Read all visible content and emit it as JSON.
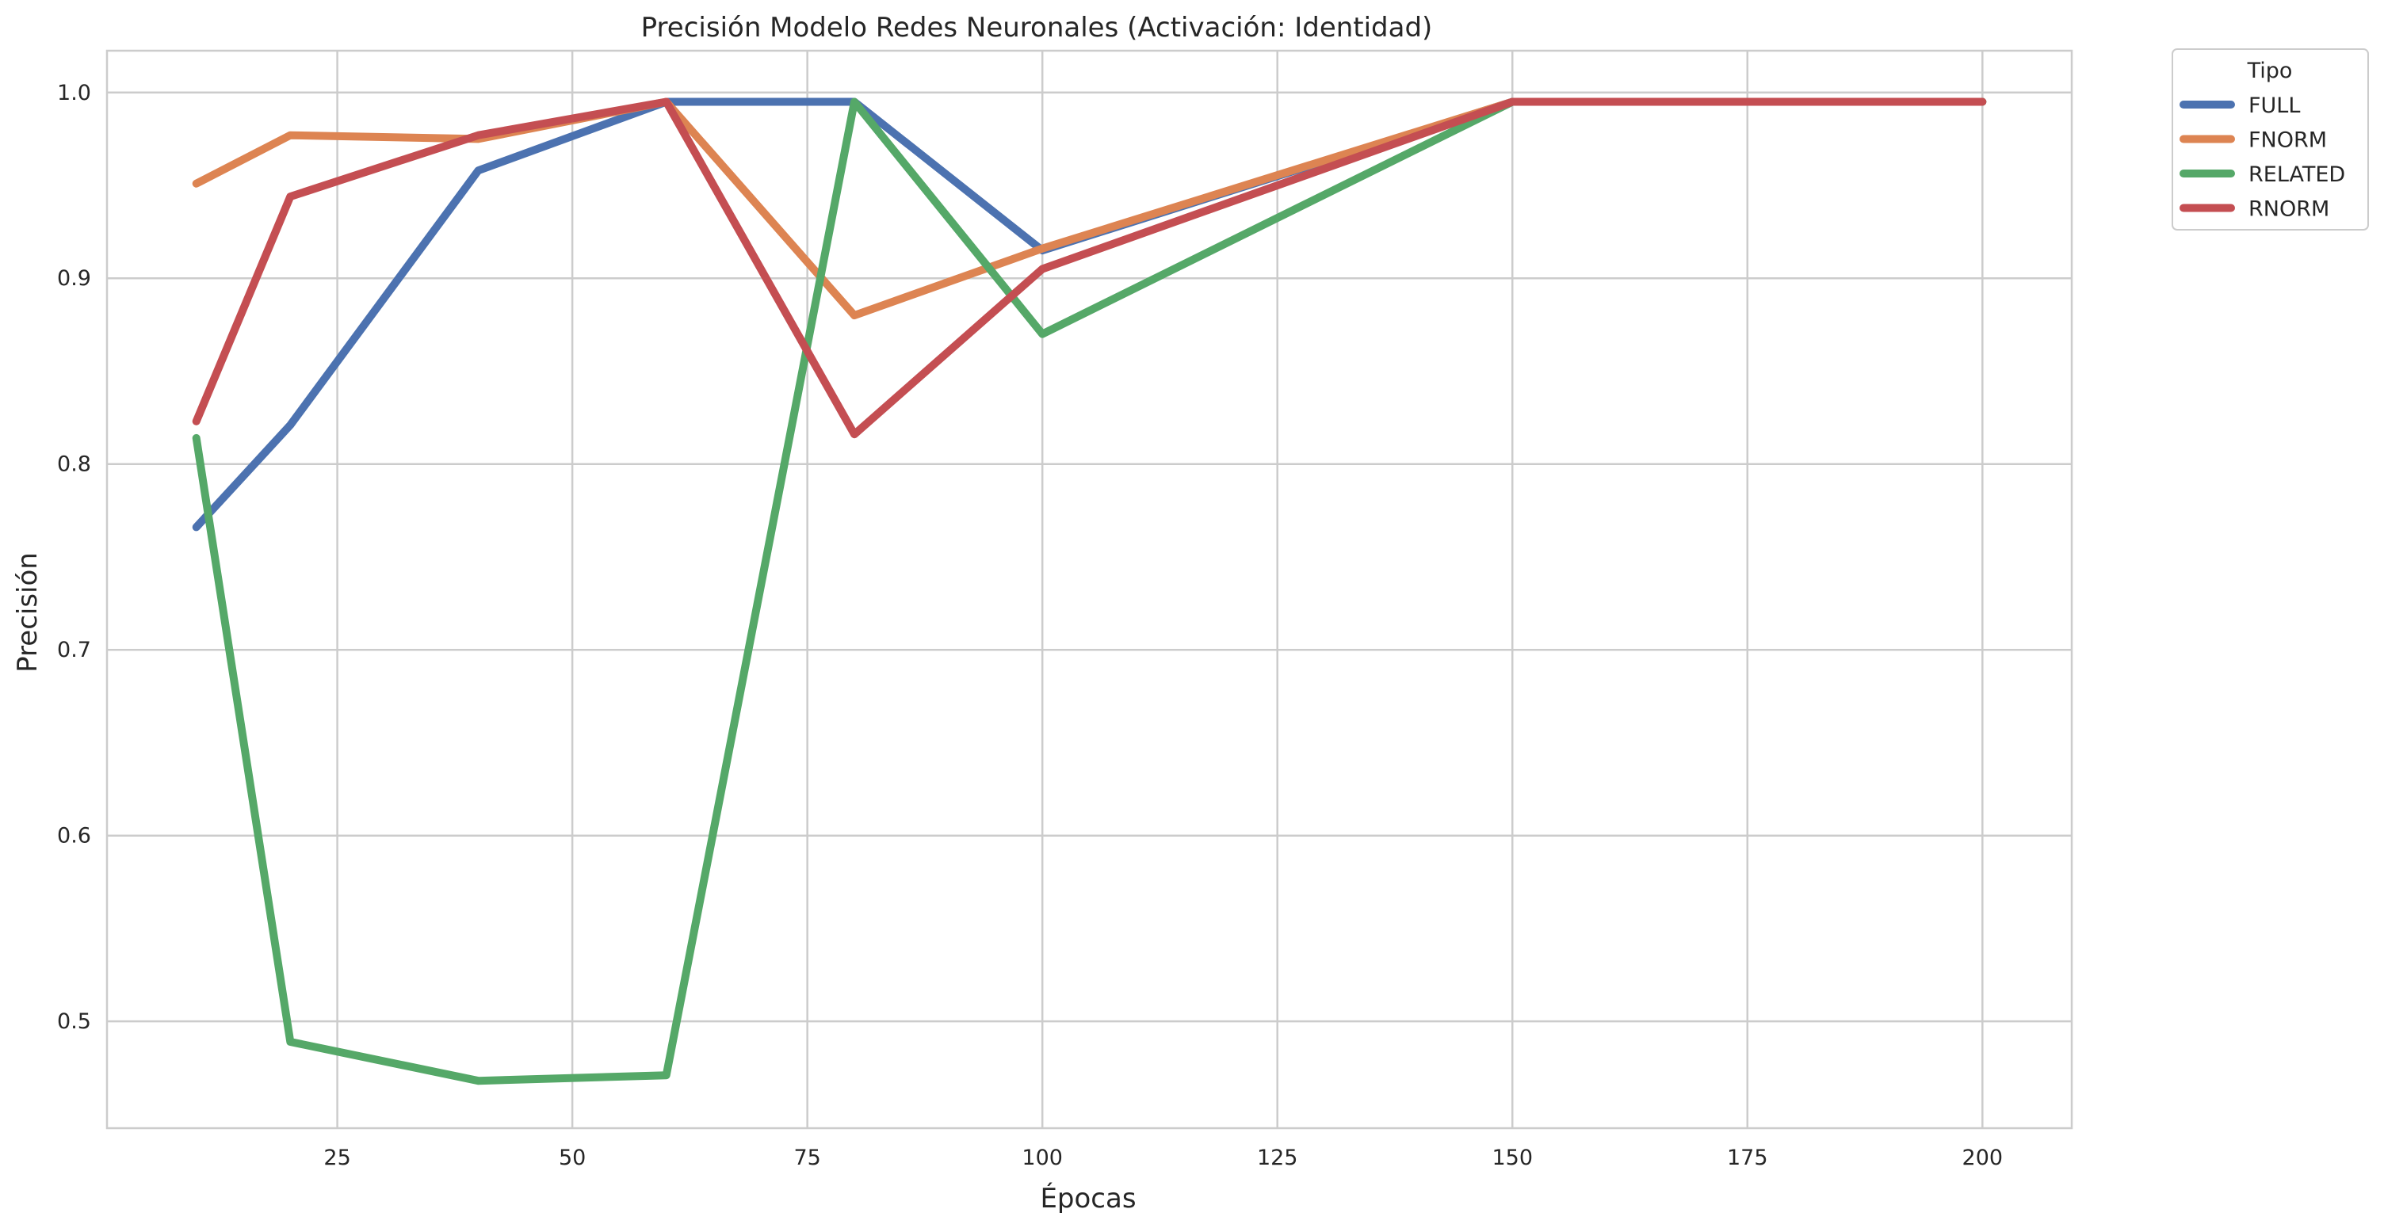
{
  "chart_data": {
    "type": "line",
    "title": "Precisión Modelo Redes Neuronales (Activación: Identidad)",
    "xlabel": "Épocas",
    "ylabel": "Precisión",
    "xlim": [
      0.5,
      209.5
    ],
    "ylim": [
      0.4425,
      1.0225
    ],
    "xticks": [
      25,
      50,
      75,
      100,
      125,
      150,
      175,
      200
    ],
    "xtick_labels": [
      "25",
      "50",
      "75",
      "100",
      "125",
      "150",
      "175",
      "200"
    ],
    "yticks": [
      0.5,
      0.6,
      0.7,
      0.8,
      0.9,
      1.0
    ],
    "ytick_labels": [
      "0.5",
      "0.6",
      "0.7",
      "0.8",
      "0.9",
      "1.0"
    ],
    "grid": true,
    "legend": {
      "title": "Tipo",
      "placement": "outside-top-right"
    },
    "x": [
      10,
      20,
      40,
      60,
      80,
      100,
      150,
      200
    ],
    "series": [
      {
        "name": "FULL",
        "color": "#4c72b0",
        "values": [
          0.766,
          0.821,
          0.958,
          0.995,
          0.995,
          0.915,
          0.995,
          0.995
        ]
      },
      {
        "name": "FNORM",
        "color": "#dd8452",
        "values": [
          0.951,
          0.977,
          0.975,
          0.995,
          0.88,
          0.916,
          0.995,
          0.995
        ]
      },
      {
        "name": "RELATED",
        "color": "#55a868",
        "values": [
          0.814,
          0.489,
          0.468,
          0.471,
          0.995,
          0.87,
          0.995,
          0.995
        ]
      },
      {
        "name": "RNORM",
        "color": "#c44e52",
        "values": [
          0.823,
          0.944,
          0.977,
          0.995,
          0.816,
          0.905,
          0.995,
          0.995
        ]
      }
    ]
  }
}
